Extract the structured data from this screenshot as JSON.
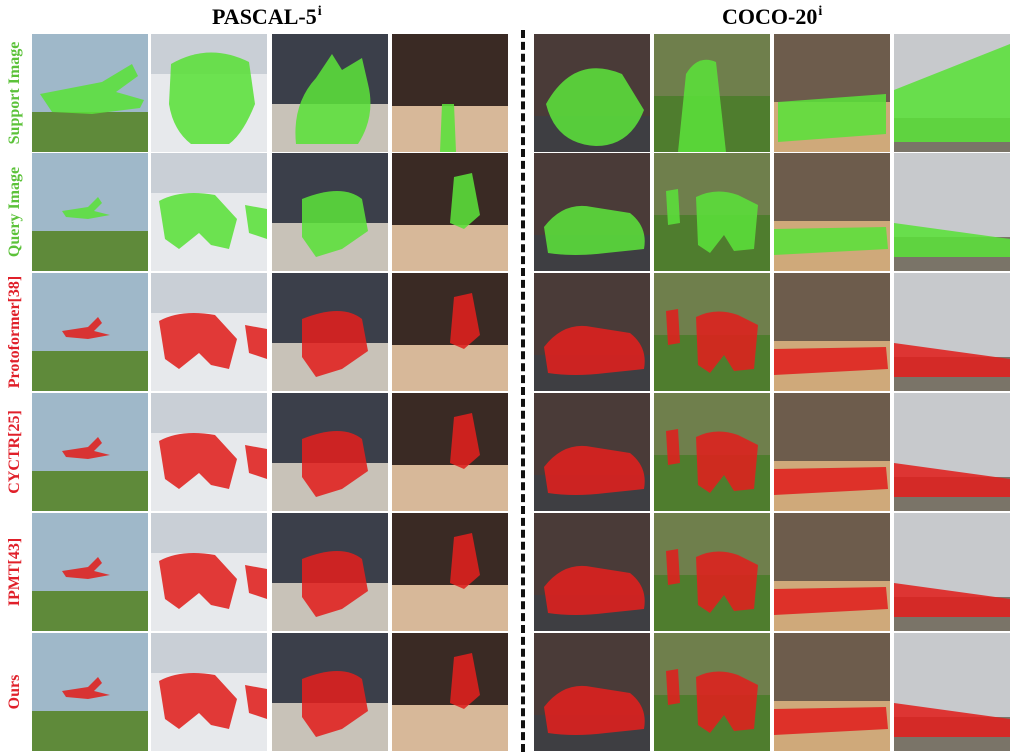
{
  "headers": {
    "pascal": {
      "base": "PASCAL-5",
      "sup": "i"
    },
    "coco": {
      "base": "COCO-20",
      "sup": "i"
    }
  },
  "rows": [
    {
      "label": "Support Image",
      "tone": "green"
    },
    {
      "label": "Query Image",
      "tone": "green"
    },
    {
      "label": "Protoformer[38]",
      "tone": "red"
    },
    {
      "label": "CYCTR[25]",
      "tone": "red"
    },
    {
      "label": "IPMT[43]",
      "tone": "red"
    },
    {
      "label": "Ours",
      "tone": "red"
    }
  ],
  "colors": {
    "support_mask": "#5be03a",
    "query_mask": "#5be03a",
    "prediction_mask": "#e0201e",
    "label_green": "#5cc23a",
    "label_red": "#e0202a"
  }
}
